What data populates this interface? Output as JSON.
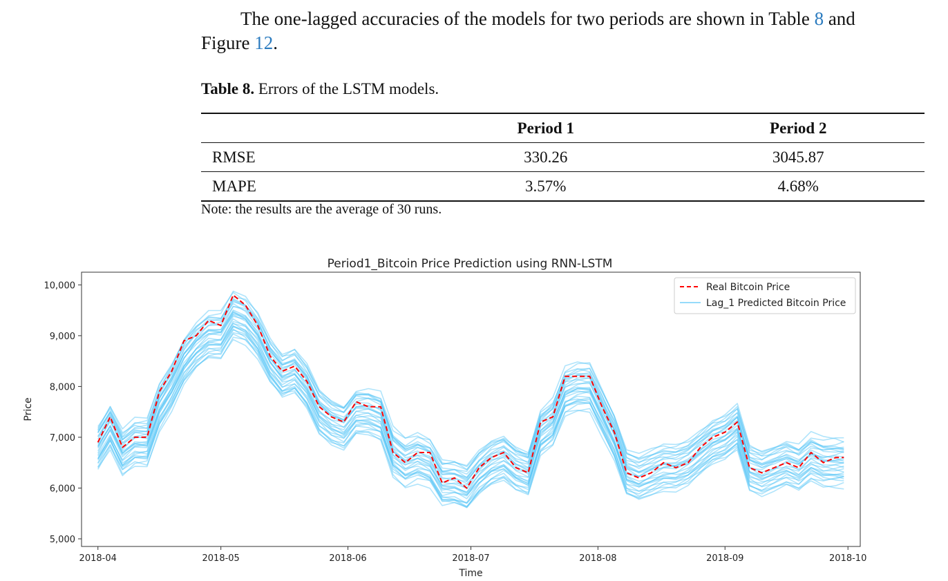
{
  "paragraph": {
    "text1": "The one-lagged accuracies of the models for two periods are shown in Table ",
    "table_ref": "8",
    "text2": " and",
    "text3": "Figure ",
    "figure_ref": "12",
    "text4": "."
  },
  "table": {
    "caption_bold": "Table 8.",
    "caption_text": " Errors of the LSTM models.",
    "headers": [
      "",
      "Period 1",
      "Period 2"
    ],
    "rows": [
      {
        "metric": "RMSE",
        "period1": "330.26",
        "period2": "3045.87"
      },
      {
        "metric": "MAPE",
        "period1": "3.57%",
        "period2": "4.68%"
      }
    ],
    "note": "Note: the results are the average of 30 runs."
  },
  "chart_data": {
    "type": "line",
    "title": "Period1_Bitcoin Price Prediction using RNN-LSTM",
    "xlabel": "Time",
    "ylabel": "Price",
    "x_ticks": [
      "2018-04",
      "2018-05",
      "2018-06",
      "2018-07",
      "2018-08",
      "2018-09",
      "2018-10"
    ],
    "y_ticks": [
      "5,000",
      "6,000",
      "7,000",
      "8,000",
      "9,000",
      "10,000"
    ],
    "xlim": [
      "2018-03-28",
      "2018-10-04"
    ],
    "ylim": [
      4850,
      10250
    ],
    "grid": false,
    "legend_position": "top-right",
    "colors": {
      "real": "#ff0000",
      "predicted": "#4fc3f7"
    },
    "series": [
      {
        "name": "Real Bitcoin Price",
        "style": "dashed",
        "x": [
          "2018-04-01",
          "2018-04-04",
          "2018-04-07",
          "2018-04-10",
          "2018-04-13",
          "2018-04-16",
          "2018-04-19",
          "2018-04-22",
          "2018-04-25",
          "2018-04-28",
          "2018-05-01",
          "2018-05-04",
          "2018-05-07",
          "2018-05-10",
          "2018-05-13",
          "2018-05-16",
          "2018-05-19",
          "2018-05-22",
          "2018-05-25",
          "2018-05-28",
          "2018-05-31",
          "2018-06-03",
          "2018-06-06",
          "2018-06-09",
          "2018-06-12",
          "2018-06-15",
          "2018-06-18",
          "2018-06-21",
          "2018-06-24",
          "2018-06-27",
          "2018-06-30",
          "2018-07-03",
          "2018-07-06",
          "2018-07-09",
          "2018-07-12",
          "2018-07-15",
          "2018-07-18",
          "2018-07-21",
          "2018-07-24",
          "2018-07-27",
          "2018-07-30",
          "2018-08-02",
          "2018-08-05",
          "2018-08-08",
          "2018-08-11",
          "2018-08-14",
          "2018-08-17",
          "2018-08-20",
          "2018-08-23",
          "2018-08-26",
          "2018-08-29",
          "2018-09-01",
          "2018-09-04",
          "2018-09-07",
          "2018-09-10",
          "2018-09-13",
          "2018-09-16",
          "2018-09-19",
          "2018-09-22",
          "2018-09-25",
          "2018-09-28",
          "2018-09-30"
        ],
        "y": [
          6900,
          7400,
          6800,
          7000,
          7000,
          7900,
          8300,
          8900,
          9000,
          9300,
          9200,
          9800,
          9600,
          9200,
          8600,
          8300,
          8400,
          8100,
          7600,
          7400,
          7300,
          7700,
          7600,
          7600,
          6700,
          6500,
          6700,
          6700,
          6100,
          6200,
          6000,
          6400,
          6600,
          6700,
          6400,
          6300,
          7300,
          7400,
          8200,
          8200,
          8200,
          7600,
          7100,
          6300,
          6200,
          6300,
          6500,
          6400,
          6500,
          6800,
          7000,
          7100,
          7300,
          6400,
          6300,
          6400,
          6500,
          6400,
          6700,
          6500,
          6600,
          6600
        ]
      },
      {
        "name": "Lag_1 Predicted Bitcoin Price",
        "style": "solid",
        "note": "30 runs, shown as a band of lines around the real price",
        "x": [
          "2018-04-01",
          "2018-04-04",
          "2018-04-07",
          "2018-04-10",
          "2018-04-13",
          "2018-04-16",
          "2018-04-19",
          "2018-04-22",
          "2018-04-25",
          "2018-04-28",
          "2018-05-01",
          "2018-05-04",
          "2018-05-07",
          "2018-05-10",
          "2018-05-13",
          "2018-05-16",
          "2018-05-19",
          "2018-05-22",
          "2018-05-25",
          "2018-05-28",
          "2018-05-31",
          "2018-06-03",
          "2018-06-06",
          "2018-06-09",
          "2018-06-12",
          "2018-06-15",
          "2018-06-18",
          "2018-06-21",
          "2018-06-24",
          "2018-06-27",
          "2018-06-30",
          "2018-07-03",
          "2018-07-06",
          "2018-07-09",
          "2018-07-12",
          "2018-07-15",
          "2018-07-18",
          "2018-07-21",
          "2018-07-24",
          "2018-07-27",
          "2018-07-30",
          "2018-08-02",
          "2018-08-05",
          "2018-08-08",
          "2018-08-11",
          "2018-08-14",
          "2018-08-17",
          "2018-08-20",
          "2018-08-23",
          "2018-08-26",
          "2018-08-29",
          "2018-09-01",
          "2018-09-04",
          "2018-09-07",
          "2018-09-10",
          "2018-09-13",
          "2018-09-16",
          "2018-09-19",
          "2018-09-22",
          "2018-09-25",
          "2018-09-28",
          "2018-09-30"
        ],
        "y_center": [
          6800,
          7200,
          6700,
          6900,
          6900,
          7600,
          8000,
          8500,
          8800,
          9000,
          9000,
          9400,
          9300,
          9000,
          8500,
          8200,
          8300,
          8000,
          7500,
          7300,
          7200,
          7500,
          7500,
          7400,
          6700,
          6500,
          6600,
          6500,
          6100,
          6100,
          6000,
          6300,
          6500,
          6600,
          6400,
          6300,
          7100,
          7300,
          7900,
          8000,
          8000,
          7500,
          7000,
          6300,
          6200,
          6300,
          6400,
          6400,
          6500,
          6700,
          6900,
          7000,
          7200,
          6400,
          6300,
          6400,
          6500,
          6400,
          6600,
          6500,
          6500,
          6500
        ],
        "band_spread": 850
      }
    ]
  }
}
